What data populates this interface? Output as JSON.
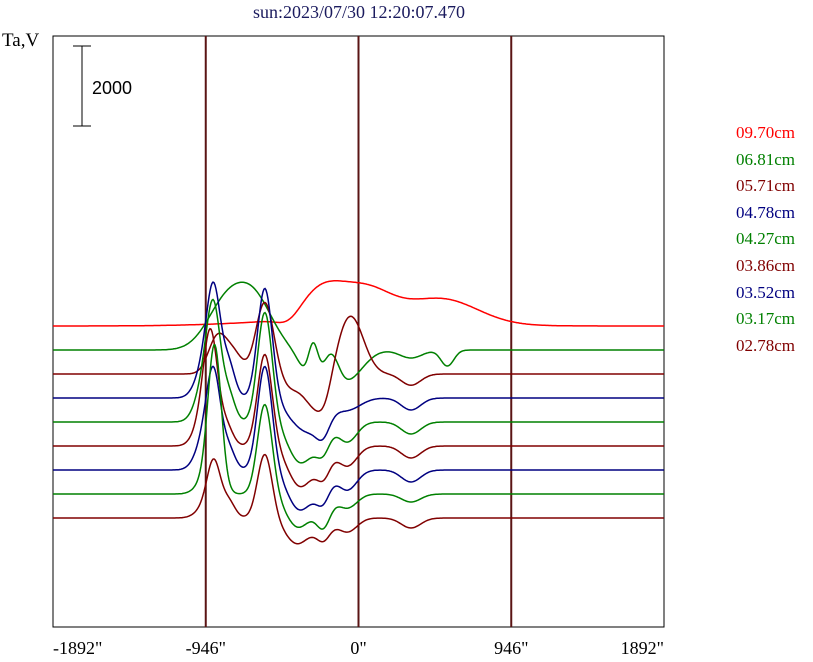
{
  "chart_data": {
    "type": "line",
    "title": "sun:2023/07/30 12:20:07.470",
    "ylabel": "Ta,V",
    "scale_bar_label": "2000",
    "scale_bar_value": 2000,
    "xlim": [
      -1892,
      1892
    ],
    "x_ticks": [
      -1892,
      -946,
      0,
      946,
      1892
    ],
    "x_tick_labels": [
      "-1892\"",
      "-946\"",
      "0\"",
      "946\"",
      "1892\""
    ],
    "vlines": [
      -946,
      0,
      946
    ],
    "grid": false,
    "legend_position": "right",
    "series": [
      {
        "name": "09.70cm",
        "color": "#ff0000",
        "baseline": 3600,
        "features": [
          [
            -650,
            130,
            700
          ],
          [
            -380,
            160,
            750
          ],
          [
            100,
            220,
            600
          ],
          [
            -850,
            70,
            -200
          ]
        ],
        "hill": 350
      },
      {
        "name": "06.81cm",
        "color": "#008000",
        "baseline": 3000,
        "features": [
          [
            -1235,
            120,
            1200
          ],
          [
            -1055,
            110,
            1100
          ],
          [
            -650,
            90,
            -700
          ],
          [
            -470,
            90,
            -600
          ],
          [
            -95,
            70,
            -200
          ],
          [
            -580,
            70,
            -300
          ],
          [
            -750,
            50,
            -200
          ],
          [
            -700,
            30,
            900
          ],
          [
            -590,
            50,
            1000
          ],
          [
            130,
            40,
            -400
          ]
        ],
        "hill": 0
      },
      {
        "name": "05.71cm",
        "color": "#800000",
        "baseline": 2400,
        "features": [
          [
            -1000,
            55,
            1800
          ],
          [
            -1295,
            55,
            900
          ],
          [
            -1195,
            55,
            500
          ],
          [
            -470,
            80,
            1450
          ],
          [
            -700,
            70,
            -650
          ],
          [
            -640,
            60,
            -300
          ],
          [
            -850,
            60,
            -300
          ],
          [
            -95,
            60,
            -280
          ],
          [
            -625,
            40,
            -250
          ]
        ],
        "hill": 0
      },
      {
        "name": "04.78cm",
        "color": "#000080",
        "baseline": 1800,
        "features": [
          [
            -1000,
            45,
            2750
          ],
          [
            -1315,
            40,
            1850
          ],
          [
            -1225,
            40,
            800
          ],
          [
            -1350,
            60,
            1150
          ],
          [
            -490,
            80,
            -300
          ],
          [
            -745,
            70,
            -700
          ],
          [
            -640,
            60,
            -400
          ],
          [
            -850,
            60,
            -250
          ],
          [
            -95,
            60,
            -300
          ],
          [
            -640,
            40,
            -350
          ]
        ],
        "hill": 0
      },
      {
        "name": "04.27cm",
        "color": "#008000",
        "baseline": 1200,
        "features": [
          [
            -1000,
            45,
            2750
          ],
          [
            -1315,
            40,
            1800
          ],
          [
            -1225,
            40,
            650
          ],
          [
            -1350,
            60,
            1400
          ],
          [
            -490,
            60,
            -500
          ],
          [
            -745,
            60,
            -700
          ],
          [
            -650,
            50,
            -350
          ],
          [
            -850,
            60,
            -300
          ],
          [
            -95,
            60,
            -300
          ],
          [
            -635,
            40,
            -350
          ],
          [
            -805,
            50,
            -300
          ]
        ],
        "hill": 0
      },
      {
        "name": "03.86cm",
        "color": "#800000",
        "baseline": 600,
        "features": [
          [
            -1000,
            45,
            2300
          ],
          [
            -1335,
            40,
            1650
          ],
          [
            -1235,
            40,
            400
          ],
          [
            -1350,
            60,
            1300
          ],
          [
            -490,
            60,
            -500
          ],
          [
            -745,
            60,
            -700
          ],
          [
            -640,
            50,
            -350
          ],
          [
            -850,
            60,
            -300
          ],
          [
            -95,
            60,
            -300
          ],
          [
            -635,
            40,
            -350
          ],
          [
            -805,
            50,
            -300
          ]
        ],
        "hill": 0
      },
      {
        "name": "03.52cm",
        "color": "#000080",
        "baseline": 0,
        "features": [
          [
            -1000,
            45,
            2600
          ],
          [
            -1315,
            40,
            1600
          ],
          [
            -1225,
            40,
            500
          ],
          [
            -1350,
            60,
            1100
          ],
          [
            -490,
            60,
            -500
          ],
          [
            -745,
            60,
            -700
          ],
          [
            -640,
            50,
            -350
          ],
          [
            -850,
            60,
            -300
          ],
          [
            -95,
            60,
            -300
          ],
          [
            -640,
            40,
            -350
          ],
          [
            -810,
            50,
            -300
          ]
        ],
        "hill": 0
      },
      {
        "name": "03.17cm",
        "color": "#008000",
        "baseline": -600,
        "features": [
          [
            -1000,
            45,
            2250
          ],
          [
            -1315,
            40,
            1750
          ],
          [
            -1305,
            40,
            1650
          ],
          [
            -1350,
            60,
            450
          ],
          [
            -490,
            60,
            -350
          ],
          [
            -745,
            60,
            -500
          ],
          [
            -640,
            50,
            -400
          ],
          [
            -850,
            60,
            -350
          ],
          [
            -95,
            60,
            -200
          ],
          [
            -635,
            40,
            -350
          ],
          [
            -805,
            50,
            -250
          ]
        ],
        "hill": 0
      },
      {
        "name": "02.78cm",
        "color": "#800000",
        "baseline": -1200,
        "features": [
          [
            -1000,
            45,
            1600
          ],
          [
            -1315,
            40,
            1150
          ],
          [
            -1225,
            40,
            400
          ],
          [
            -1350,
            60,
            350
          ],
          [
            -490,
            60,
            -350
          ],
          [
            -745,
            60,
            -350
          ],
          [
            -640,
            50,
            -250
          ],
          [
            -850,
            60,
            -300
          ],
          [
            -95,
            60,
            -250
          ],
          [
            -635,
            40,
            -250
          ],
          [
            -805,
            50,
            -200
          ]
        ],
        "hill": 0
      }
    ]
  }
}
